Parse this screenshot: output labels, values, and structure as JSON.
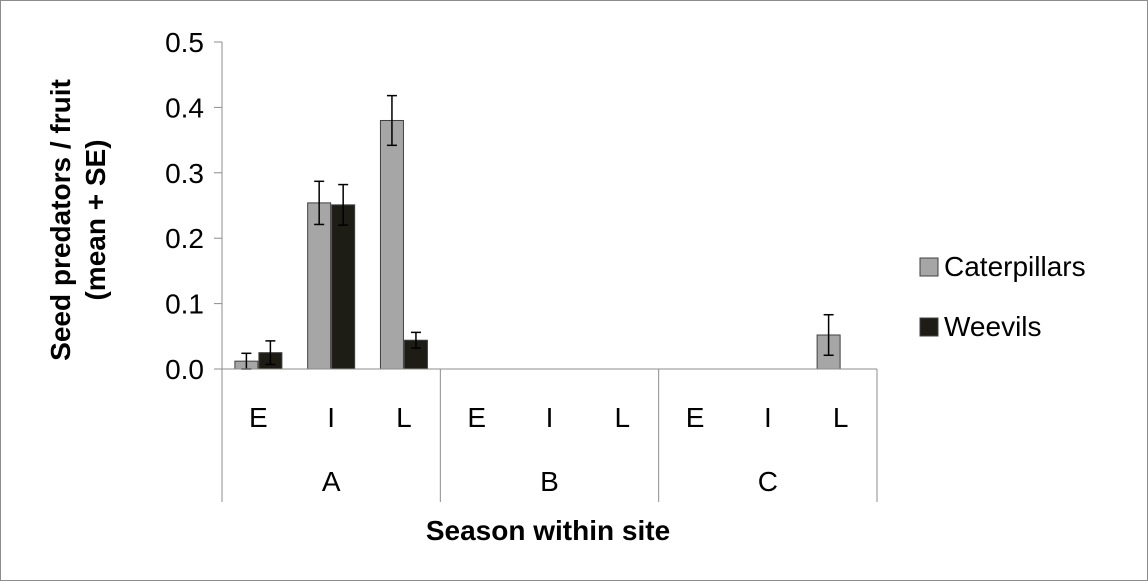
{
  "chart_data": {
    "type": "bar",
    "xlabel": "Season within site",
    "ylabel_lines": [
      "Seed predators / fruit",
      "(mean + SE)"
    ],
    "ylim": [
      0,
      0.5
    ],
    "yticks": [
      "0.0",
      "0.1",
      "0.2",
      "0.3",
      "0.4",
      "0.5"
    ],
    "ytick_values": [
      0,
      0.1,
      0.2,
      0.3,
      0.4,
      0.5
    ],
    "groups": [
      "A",
      "B",
      "C"
    ],
    "categories": [
      "E",
      "I",
      "L",
      "E",
      "I",
      "L",
      "E",
      "I",
      "L"
    ],
    "series": [
      {
        "name": "Caterpillars",
        "color": "#a6a6a6",
        "values": [
          0.012,
          0.254,
          0.38,
          0,
          0,
          0,
          0,
          0,
          0.052
        ],
        "errors": [
          0.012,
          0.033,
          0.038,
          0,
          0,
          0,
          0,
          0,
          0.031
        ]
      },
      {
        "name": "Weevils",
        "color": "#1d1d16",
        "values": [
          0.025,
          0.251,
          0.044,
          0,
          0,
          0,
          0,
          0,
          0
        ],
        "errors": [
          0.018,
          0.031,
          0.012,
          0,
          0,
          0,
          0,
          0,
          0
        ]
      }
    ],
    "grid": false,
    "legend_position": "right"
  }
}
